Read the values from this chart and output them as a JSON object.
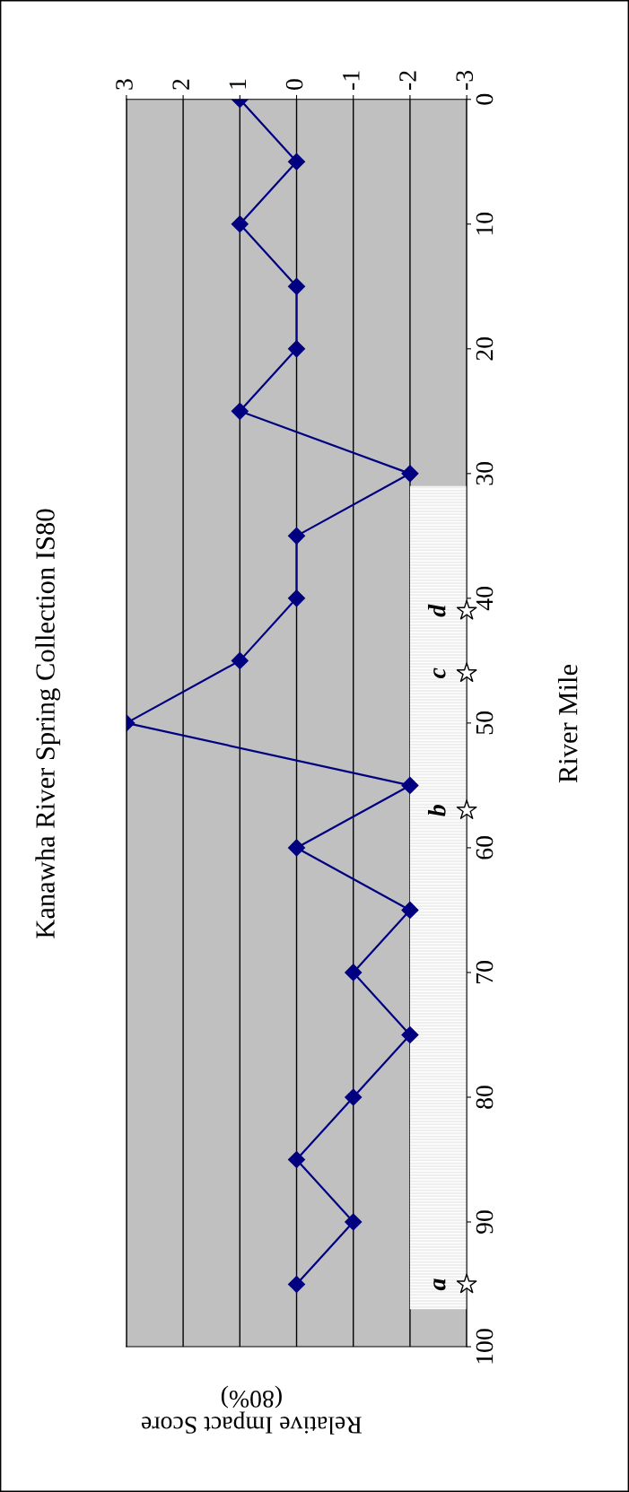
{
  "chart_data": {
    "type": "line",
    "title": "Kanawha River Spring Collection IS80",
    "ylabel": "River Mile",
    "xlabel": "Relative Impact Score\n(80%)",
    "ylim": [
      100,
      0
    ],
    "yticks": [
      0,
      10,
      20,
      30,
      40,
      50,
      60,
      70,
      80,
      90,
      100
    ],
    "xlim": [
      3,
      -3
    ],
    "xticks": [
      -3,
      -2,
      -1,
      0,
      1,
      2,
      3
    ],
    "grid": "x",
    "series": [
      {
        "color": "#000080",
        "marker": "diamond",
        "x": [
          1,
          0,
          1,
          0,
          0,
          1,
          -2,
          0,
          0,
          1,
          3,
          -2,
          0,
          -2,
          -1,
          -2,
          -1,
          0,
          -1,
          0
        ],
        "values": [
          0,
          5,
          10,
          15,
          20,
          25,
          30,
          35,
          40,
          45,
          50,
          55,
          60,
          65,
          70,
          75,
          80,
          85,
          90,
          95
        ]
      },
      {
        "type": "scatter",
        "color": "#000000",
        "marker": "star",
        "x": [
          -3,
          -3,
          -3,
          -3
        ],
        "values": [
          41,
          46,
          57,
          95
        ]
      }
    ],
    "bands": [
      {
        "axis": "y",
        "from": 31,
        "to": 97,
        "color": "#eeeeee"
      }
    ],
    "annotations": [
      "d",
      "c",
      "b",
      "a"
    ]
  }
}
